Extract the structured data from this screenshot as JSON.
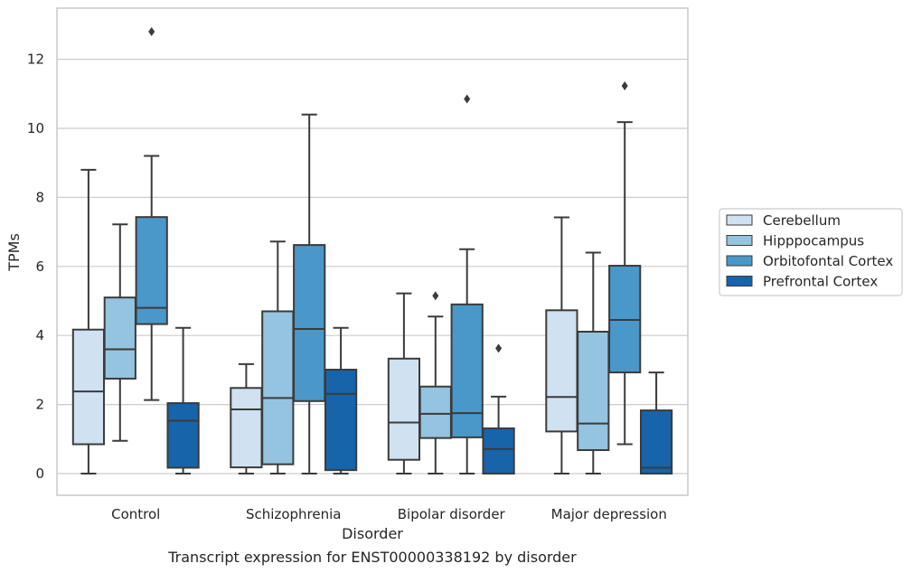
{
  "chart_data": {
    "type": "box",
    "caption": "Transcript expression for ENST00000338192 by disorder",
    "xlabel": "Disorder",
    "ylabel": "TPMs",
    "ylim": [
      -0.6,
      13.5
    ],
    "yticks": [
      0,
      2,
      4,
      6,
      8,
      10,
      12
    ],
    "grid": true,
    "legend_placement": "right",
    "categories": [
      "Control",
      "Schizophrenia",
      "Bipolar disorder",
      "Major depression"
    ],
    "series": [
      {
        "name": "Cerebellum",
        "color": "#d0e1f2",
        "boxes": [
          {
            "whislo": 0.0,
            "q1": 0.85,
            "med": 2.38,
            "q3": 4.17,
            "whishi": 8.8,
            "fliers": []
          },
          {
            "whislo": 0.0,
            "q1": 0.18,
            "med": 1.86,
            "q3": 2.48,
            "whishi": 3.17,
            "fliers": []
          },
          {
            "whislo": 0.0,
            "q1": 0.4,
            "med": 1.48,
            "q3": 3.33,
            "whishi": 5.22,
            "fliers": []
          },
          {
            "whislo": 0.0,
            "q1": 1.22,
            "med": 2.22,
            "q3": 4.73,
            "whishi": 7.42,
            "fliers": []
          }
        ]
      },
      {
        "name": "Hipppocampus",
        "color": "#94c4df",
        "boxes": [
          {
            "whislo": 0.95,
            "q1": 2.75,
            "med": 3.6,
            "q3": 5.1,
            "whishi": 7.22,
            "fliers": []
          },
          {
            "whislo": 0.0,
            "q1": 0.27,
            "med": 2.19,
            "q3": 4.7,
            "whishi": 6.72,
            "fliers": []
          },
          {
            "whislo": 0.0,
            "q1": 1.03,
            "med": 1.73,
            "q3": 2.52,
            "whishi": 4.55,
            "fliers": [
              5.15
            ]
          },
          {
            "whislo": 0.0,
            "q1": 0.68,
            "med": 1.45,
            "q3": 4.11,
            "whishi": 6.4,
            "fliers": []
          }
        ]
      },
      {
        "name": "Orbitofontal Cortex",
        "color": "#4a98c9",
        "boxes": [
          {
            "whislo": 2.13,
            "q1": 4.33,
            "med": 4.8,
            "q3": 7.43,
            "whishi": 9.2,
            "fliers": [
              12.8
            ]
          },
          {
            "whislo": 0.0,
            "q1": 2.1,
            "med": 4.19,
            "q3": 6.62,
            "whishi": 10.4,
            "fliers": []
          },
          {
            "whislo": 0.0,
            "q1": 1.05,
            "med": 1.75,
            "q3": 4.9,
            "whishi": 6.5,
            "fliers": [
              10.85
            ]
          },
          {
            "whislo": 0.85,
            "q1": 2.93,
            "med": 4.45,
            "q3": 6.02,
            "whishi": 10.18,
            "fliers": [
              11.23
            ]
          }
        ]
      },
      {
        "name": "Prefrontal Cortex",
        "color": "#1764ab",
        "boxes": [
          {
            "whislo": 0.0,
            "q1": 0.17,
            "med": 1.53,
            "q3": 2.04,
            "whishi": 4.22,
            "fliers": []
          },
          {
            "whislo": 0.0,
            "q1": 0.1,
            "med": 2.31,
            "q3": 3.01,
            "whishi": 4.22,
            "fliers": []
          },
          {
            "whislo": 0.0,
            "q1": 0.0,
            "med": 0.71,
            "q3": 1.31,
            "whishi": 2.23,
            "fliers": [
              3.63
            ]
          },
          {
            "whislo": 0.0,
            "q1": 0.0,
            "med": 0.17,
            "q3": 1.83,
            "whishi": 2.93,
            "fliers": []
          }
        ]
      }
    ]
  }
}
